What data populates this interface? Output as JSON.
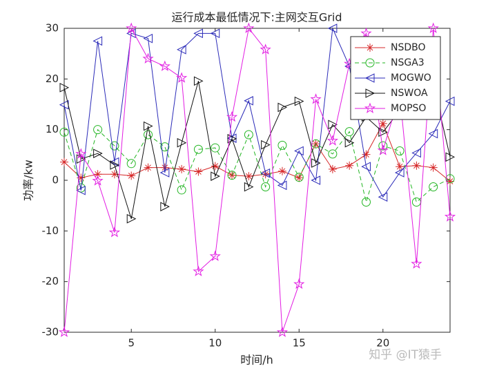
{
  "chart_data": {
    "type": "line",
    "title": "运行成本最低情况下:主网交互Grid",
    "x_label": "时间/h",
    "y_label": "功率/kw",
    "x": [
      1,
      2,
      3,
      4,
      5,
      6,
      7,
      8,
      9,
      10,
      11,
      12,
      13,
      14,
      15,
      16,
      17,
      18,
      19,
      20,
      21,
      22,
      23,
      24
    ],
    "xlim": [
      1,
      24
    ],
    "xticks": [
      5,
      10,
      15,
      20
    ],
    "ylim": [
      -30,
      30
    ],
    "yticks": [
      -30,
      -20,
      -10,
      0,
      10,
      20,
      30
    ],
    "legend_position": "upper-right",
    "series": [
      {
        "name": "NSDBO",
        "color": "#d62728",
        "marker": "asterisk",
        "dash": "solid",
        "values": [
          3.6,
          0.5,
          1.2,
          1.2,
          0.9,
          2.5,
          2.5,
          2.2,
          1.7,
          2.8,
          1.0,
          0.8,
          1.2,
          1.8,
          0.5,
          7.2,
          2.2,
          2.9,
          5.1,
          11.2,
          2.7,
          2.9,
          2.5,
          -0.2
        ]
      },
      {
        "name": "NSGA3",
        "color": "#22b522",
        "marker": "circle",
        "dash": "dashed",
        "values": [
          9.5,
          -1.5,
          10.0,
          6.8,
          3.3,
          9.0,
          6.6,
          -1.9,
          6.1,
          6.4,
          1.0,
          9.0,
          -1.3,
          6.9,
          0.6,
          7.2,
          5.2,
          9.6,
          -4.3,
          6.8,
          5.8,
          -4.3,
          -1.3,
          0.3
        ]
      },
      {
        "name": "MOGWO",
        "color": "#2a2ab8",
        "marker": "triangle-left",
        "dash": "solid",
        "values": [
          14.9,
          -2.0,
          27.5,
          3.6,
          29.0,
          28.0,
          1.5,
          25.8,
          29.0,
          29.0,
          8.3,
          15.7,
          1.4,
          -1.0,
          5.8,
          0.0,
          30.0,
          22.5,
          2.7,
          -3.3,
          1.5,
          5.4,
          9.2,
          15.6
        ]
      },
      {
        "name": "NSWOA",
        "color": "#111111",
        "marker": "triangle-right",
        "dash": "solid",
        "values": [
          18.3,
          4.2,
          5.3,
          3.0,
          -7.6,
          10.7,
          -5.2,
          7.4,
          19.6,
          0.8,
          8.2,
          -1.3,
          7.0,
          14.4,
          15.6,
          3.4,
          11.0,
          7.4,
          12.5,
          9.5,
          13.8,
          14.0,
          19.0,
          4.6
        ]
      },
      {
        "name": "MOPSO",
        "color": "#e21be2",
        "marker": "pentagram",
        "dash": "solid",
        "values": [
          -30.0,
          5.2,
          -0.1,
          -10.3,
          30.0,
          24.0,
          22.5,
          20.2,
          -18.0,
          -15.0,
          12.5,
          30.0,
          25.8,
          -30.0,
          -20.5,
          16.0,
          7.8,
          23.0,
          29.0,
          5.9,
          17.0,
          -16.5,
          30.0,
          -7.2
        ]
      }
    ]
  },
  "watermark": "知乎 @IT猿手"
}
